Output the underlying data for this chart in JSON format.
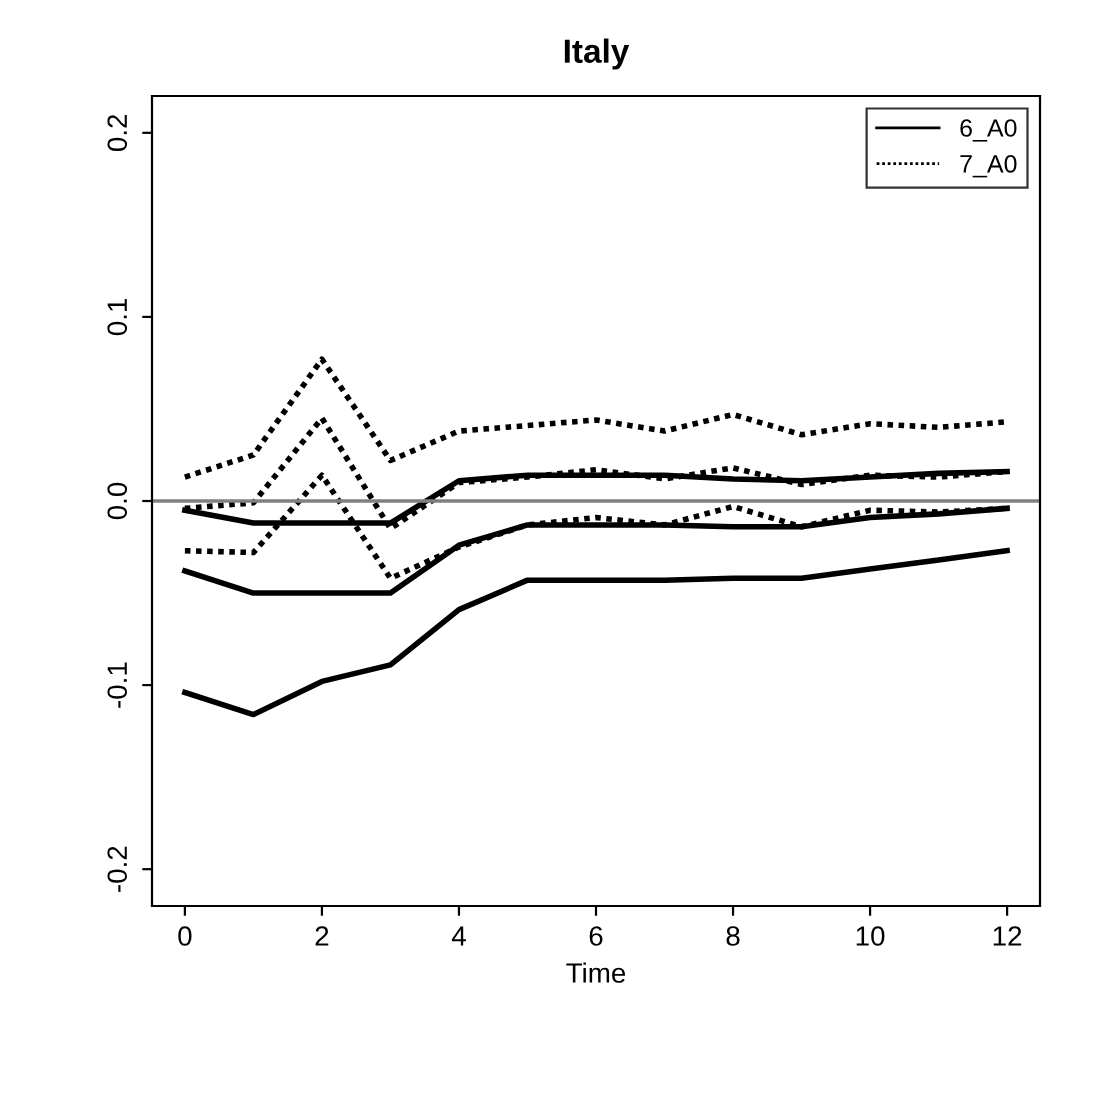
{
  "chart_data": {
    "type": "line",
    "title": "Italy",
    "xlabel": "Time",
    "x": [
      0,
      1,
      2,
      3,
      4,
      5,
      6,
      7,
      8,
      9,
      10,
      11,
      12
    ],
    "xlim": [
      -0.48,
      12.48
    ],
    "xticks": [
      0,
      2,
      4,
      6,
      8,
      10,
      12
    ],
    "ylim": [
      -0.22,
      0.22
    ],
    "yticks": [
      -0.2,
      -0.1,
      {
        "value": 0,
        "label": "0.0"
      },
      0.1,
      0.2
    ],
    "ref_lines": [
      {
        "axis": "y",
        "value": 0,
        "color": "#808080"
      }
    ],
    "legend": "top right",
    "grid": false,
    "series": [
      {
        "name": "6_A0",
        "color": "#000000",
        "line_style": "solid",
        "values": [
          -0.005,
          -0.012,
          -0.012,
          -0.012,
          0.011,
          0.014,
          0.014,
          0.014,
          0.012,
          0.011,
          0.013,
          0.015,
          0.016
        ]
      },
      {
        "name": "7_A0",
        "color": "#000000",
        "line_style": "dotted",
        "values": [
          -0.004,
          -0.001,
          0.045,
          -0.015,
          0.01,
          0.013,
          0.017,
          0.012,
          0.018,
          0.009,
          0.014,
          0.013,
          0.016
        ]
      },
      {
        "color": "#000000",
        "line_style": "solid",
        "values": [
          -0.038,
          -0.05,
          -0.05,
          -0.05,
          -0.024,
          -0.013,
          -0.013,
          -0.013,
          -0.014,
          -0.014,
          -0.009,
          -0.007,
          -0.004
        ]
      },
      {
        "color": "#000000",
        "line_style": "solid",
        "values": [
          -0.104,
          -0.116,
          -0.098,
          -0.089,
          -0.059,
          -0.043,
          -0.043,
          -0.043,
          -0.042,
          -0.042,
          -0.037,
          -0.032,
          -0.027
        ]
      },
      {
        "color": "#000000",
        "line_style": "dotted",
        "values": [
          0.013,
          0.025,
          0.077,
          0.022,
          0.038,
          0.041,
          0.044,
          0.038,
          0.047,
          0.036,
          0.042,
          0.04,
          0.043
        ]
      },
      {
        "color": "#000000",
        "line_style": "dotted",
        "values": [
          -0.027,
          -0.028,
          0.014,
          -0.042,
          -0.025,
          -0.013,
          -0.009,
          -0.013,
          -0.003,
          -0.014,
          -0.005,
          -0.006,
          -0.004
        ]
      }
    ]
  }
}
